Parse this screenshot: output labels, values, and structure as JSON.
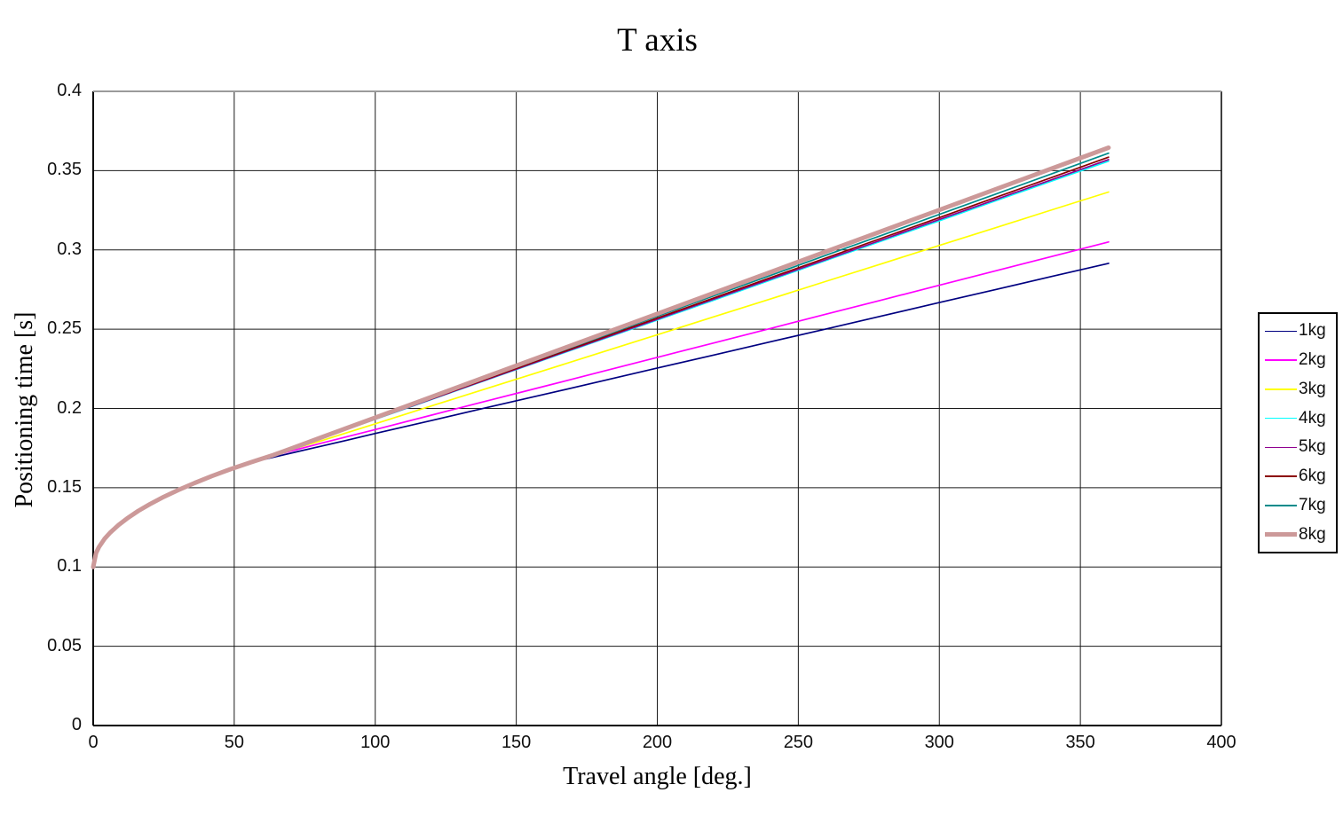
{
  "chart_data": {
    "type": "line",
    "title": "T axis",
    "xlabel": "Travel angle [deg.]",
    "ylabel": "Positioning time [s]",
    "xlim": [
      0,
      400
    ],
    "ylim": [
      0,
      0.4
    ],
    "grid": true,
    "legend_position": "right-outside",
    "background_color": "#ffffff",
    "grid_color": "#1a1a1a",
    "axis_color": "#000000",
    "x_ticks": [
      0,
      50,
      100,
      150,
      200,
      250,
      300,
      350,
      400
    ],
    "y_ticks": [
      "0",
      "0.05",
      "0.1",
      "0.15",
      "0.2",
      "0.25",
      "0.3",
      "0.35",
      "0.4"
    ],
    "x": [
      0,
      1,
      2,
      4,
      6,
      9,
      12,
      16,
      20,
      25,
      30,
      36,
      42,
      49,
      56,
      64,
      72,
      81,
      90,
      100,
      120,
      140,
      160,
      180,
      200,
      220,
      240,
      260,
      280,
      300,
      320,
      340,
      360
    ],
    "series": [
      {
        "name": "1kg",
        "color": "#000080",
        "line_width": 1.7,
        "y": [
          0.1,
          0.1088,
          0.1125,
          0.1177,
          0.1217,
          0.1265,
          0.1306,
          0.1354,
          0.1395,
          0.1442,
          0.1484,
          0.153,
          0.1573,
          0.1619,
          0.166,
          0.1693,
          0.1726,
          0.1763,
          0.18,
          0.1842,
          0.1924,
          0.2007,
          0.2089,
          0.2172,
          0.2255,
          0.2337,
          0.242,
          0.2502,
          0.2585,
          0.2668,
          0.275,
          0.2833,
          0.2915
        ]
      },
      {
        "name": "2kg",
        "color": "#FF00FF",
        "line_width": 1.7,
        "y": [
          0.1,
          0.1088,
          0.1125,
          0.1177,
          0.1217,
          0.1265,
          0.1306,
          0.1354,
          0.1395,
          0.1442,
          0.1484,
          0.153,
          0.1573,
          0.1619,
          0.1661,
          0.1703,
          0.174,
          0.1781,
          0.1822,
          0.1867,
          0.1958,
          0.2049,
          0.214,
          0.2231,
          0.2322,
          0.2413,
          0.2504,
          0.2595,
          0.2686,
          0.2777,
          0.2868,
          0.2959,
          0.305
        ]
      },
      {
        "name": "3kg",
        "color": "#FFFF00",
        "line_width": 1.7,
        "y": [
          0.1,
          0.1088,
          0.1125,
          0.1177,
          0.1217,
          0.1265,
          0.1306,
          0.1354,
          0.1395,
          0.1442,
          0.1484,
          0.153,
          0.1573,
          0.1619,
          0.1661,
          0.1707,
          0.175,
          0.1797,
          0.1847,
          0.1903,
          0.2016,
          0.2128,
          0.224,
          0.2353,
          0.2465,
          0.2578,
          0.269,
          0.2803,
          0.2915,
          0.3028,
          0.314,
          0.3253,
          0.3365
        ]
      },
      {
        "name": "4kg",
        "color": "#00FFFF",
        "line_width": 1.7,
        "y": [
          0.1,
          0.1088,
          0.1125,
          0.1177,
          0.1217,
          0.1265,
          0.1306,
          0.1354,
          0.1395,
          0.1442,
          0.1484,
          0.153,
          0.1573,
          0.1619,
          0.1661,
          0.1707,
          0.1757,
          0.1813,
          0.187,
          0.1932,
          0.2057,
          0.2183,
          0.2308,
          0.2433,
          0.2558,
          0.2683,
          0.2809,
          0.2934,
          0.3059,
          0.3184,
          0.331,
          0.3435,
          0.356
        ]
      },
      {
        "name": "5kg",
        "color": "#900090",
        "line_width": 1.7,
        "y": [
          0.1,
          0.1088,
          0.1125,
          0.1177,
          0.1217,
          0.1265,
          0.1306,
          0.1354,
          0.1395,
          0.1442,
          0.1484,
          0.153,
          0.1573,
          0.1619,
          0.1661,
          0.1707,
          0.1757,
          0.1814,
          0.187,
          0.1933,
          0.2059,
          0.2185,
          0.2311,
          0.2437,
          0.2563,
          0.2689,
          0.2815,
          0.294,
          0.3066,
          0.3192,
          0.3318,
          0.3444,
          0.357
        ]
      },
      {
        "name": "6kg",
        "color": "#8B0000",
        "line_width": 1.7,
        "y": [
          0.1,
          0.1088,
          0.1125,
          0.1177,
          0.1217,
          0.1265,
          0.1306,
          0.1354,
          0.1395,
          0.1442,
          0.1484,
          0.153,
          0.1573,
          0.1619,
          0.1661,
          0.1707,
          0.1757,
          0.1815,
          0.1872,
          0.1935,
          0.2062,
          0.2189,
          0.2316,
          0.2443,
          0.257,
          0.2697,
          0.2824,
          0.295,
          0.3077,
          0.3204,
          0.3331,
          0.3458,
          0.3585
        ]
      },
      {
        "name": "7kg",
        "color": "#008B8B",
        "line_width": 1.7,
        "y": [
          0.1,
          0.1088,
          0.1125,
          0.1177,
          0.1217,
          0.1265,
          0.1306,
          0.1354,
          0.1395,
          0.1442,
          0.1484,
          0.153,
          0.1573,
          0.1619,
          0.1661,
          0.1707,
          0.1758,
          0.1816,
          0.1874,
          0.1938,
          0.2067,
          0.2195,
          0.2324,
          0.2452,
          0.2581,
          0.271,
          0.2838,
          0.2967,
          0.3095,
          0.3224,
          0.3352,
          0.3481,
          0.361
        ]
      },
      {
        "name": "8kg",
        "color": "#CC9999",
        "line_width": 5,
        "y": [
          0.1,
          0.1088,
          0.1125,
          0.1177,
          0.1217,
          0.1265,
          0.1306,
          0.1354,
          0.1395,
          0.1442,
          0.1484,
          0.153,
          0.1573,
          0.1619,
          0.1661,
          0.1707,
          0.1759,
          0.1818,
          0.1877,
          0.1942,
          0.2073,
          0.2204,
          0.2335,
          0.2466,
          0.2597,
          0.2728,
          0.2859,
          0.299,
          0.3121,
          0.3252,
          0.3383,
          0.3514,
          0.3645
        ]
      }
    ]
  }
}
